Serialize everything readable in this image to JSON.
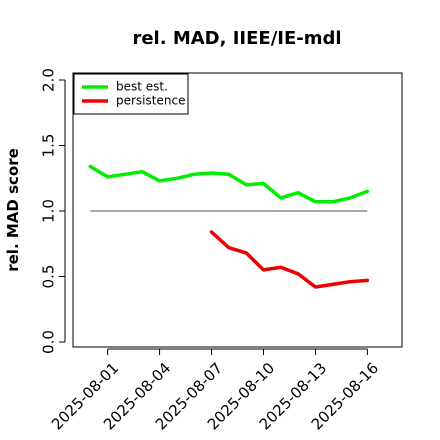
{
  "chart_data": {
    "type": "line",
    "title": "rel. MAD, IIEE/IE-mdl",
    "xlabel": "",
    "ylabel": "rel. MAD score",
    "ylim": [
      0.0,
      2.0
    ],
    "yticks": [
      "0.0",
      "0.5",
      "1.0",
      "1.5",
      "2.0"
    ],
    "xlim": [
      "2025-07-30",
      "2025-08-18"
    ],
    "xticks": [
      "2025-08-01",
      "2025-08-04",
      "2025-08-07",
      "2025-08-10",
      "2025-08-13",
      "2025-08-16"
    ],
    "legend_position": "top-left",
    "reference_line": {
      "y": 1.0,
      "from": "2025-07-31",
      "to": "2025-08-16",
      "color": "#888888"
    },
    "series": [
      {
        "name": "best est.",
        "color": "#00ee00",
        "x": [
          "2025-07-31",
          "2025-08-01",
          "2025-08-02",
          "2025-08-03",
          "2025-08-04",
          "2025-08-05",
          "2025-08-06",
          "2025-08-07",
          "2025-08-08",
          "2025-08-09",
          "2025-08-10",
          "2025-08-11",
          "2025-08-12",
          "2025-08-13",
          "2025-08-14",
          "2025-08-15",
          "2025-08-16"
        ],
        "values": [
          1.34,
          1.26,
          1.28,
          1.3,
          1.23,
          1.25,
          1.28,
          1.29,
          1.28,
          1.2,
          1.21,
          1.1,
          1.14,
          1.07,
          1.07,
          1.1,
          1.15
        ]
      },
      {
        "name": "persistence",
        "color": "#ee0000",
        "x": [
          "2025-08-07",
          "2025-08-08",
          "2025-08-09",
          "2025-08-10",
          "2025-08-11",
          "2025-08-12",
          "2025-08-13",
          "2025-08-14",
          "2025-08-15",
          "2025-08-16"
        ],
        "values": [
          0.84,
          0.72,
          0.68,
          0.55,
          0.57,
          0.52,
          0.42,
          0.44,
          0.46,
          0.47
        ]
      }
    ]
  }
}
